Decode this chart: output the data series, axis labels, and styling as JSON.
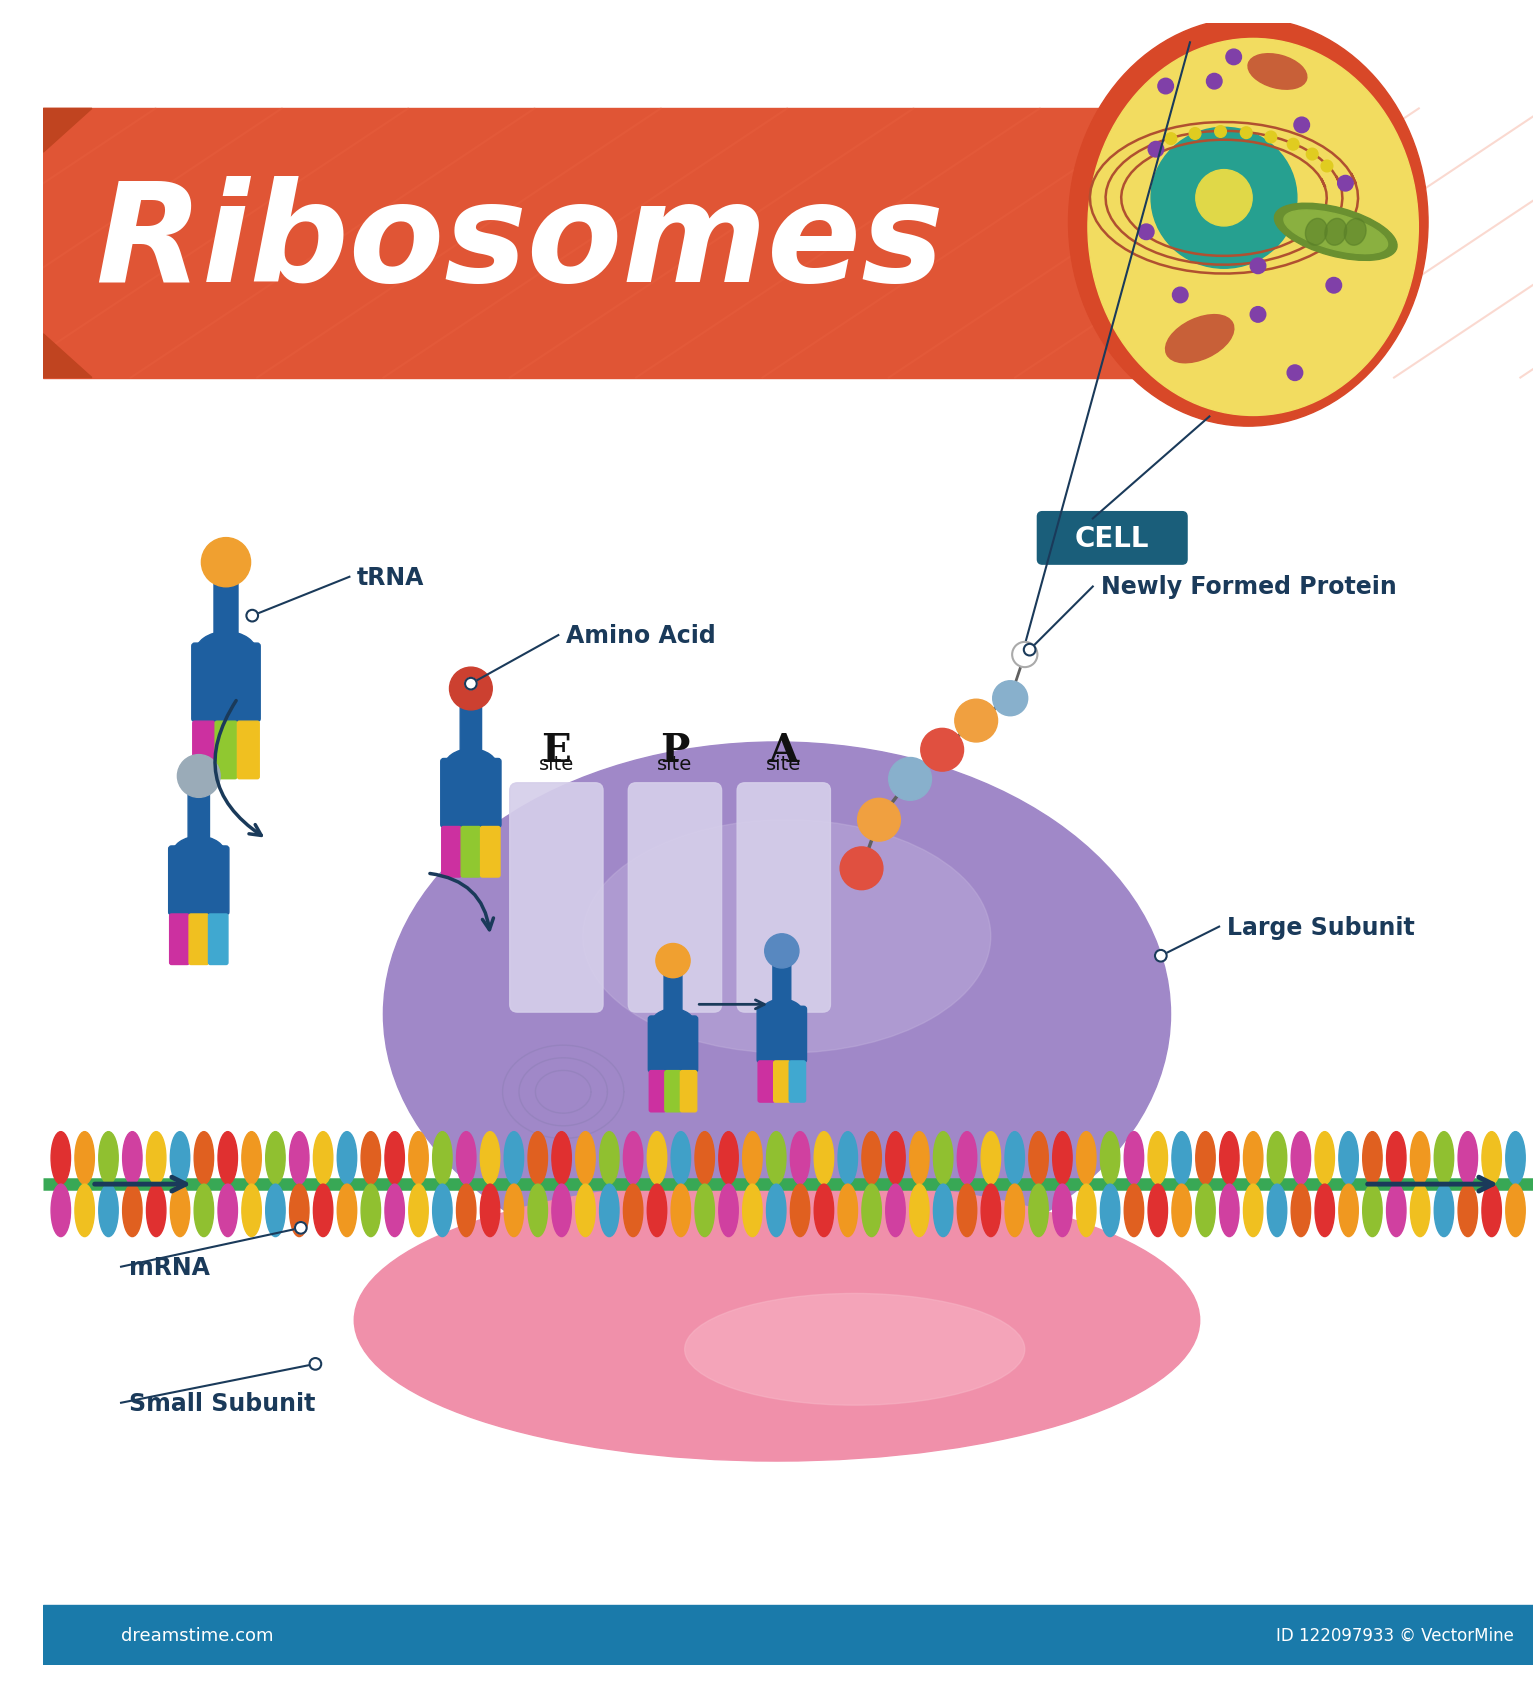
{
  "title": "Ribosomes",
  "bg_color": "#ffffff",
  "banner_color": "#E05535",
  "banner_shadow": "#C04420",
  "title_color": "#ffffff",
  "cell_label_bg": "#1A5E7A",
  "cell_label_color": "#ffffff",
  "label_color": "#1A3A5A",
  "lfs": 17,
  "large_sub_color": "#A088C8",
  "large_sub_light": "#C0B0DC",
  "small_sub_color": "#F090AA",
  "small_sub_light": "#F8B8C8",
  "mrna_backbone": "#38A855",
  "trna_body": "#1E5FA0",
  "site_channel": "#D5CEEA",
  "bottom_bar": "#1A7AAA",
  "protein_colors": [
    "#F0A040",
    "#88B0CC",
    "#E05040",
    "#F0A040",
    "#88B0CC"
  ],
  "mrna_bases": [
    "#E03030",
    "#F09820",
    "#90C030",
    "#D040A0",
    "#F0C020",
    "#40A0C8",
    "#E06020"
  ],
  "trna_legs": [
    "#CC30A0",
    "#90C830",
    "#F0C020"
  ],
  "trna_legs2": [
    "#CC30A0",
    "#F0C020",
    "#40A8D0"
  ],
  "bottom_text_left": "dreamstime.com",
  "bottom_text_right": "ID 122097933 © VectorMine"
}
